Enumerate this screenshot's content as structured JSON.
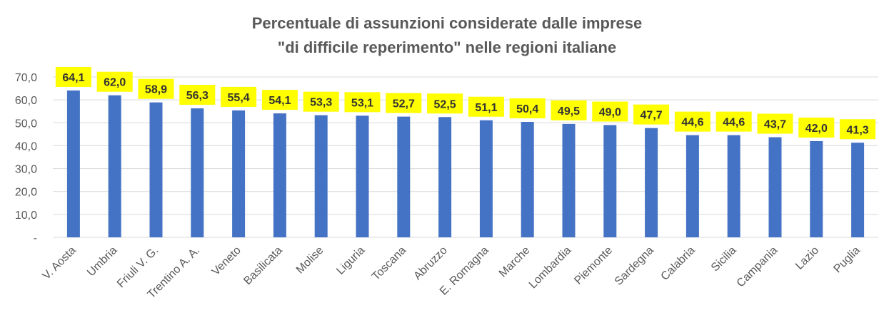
{
  "title_lines": [
    "Percentuale di assunzioni considerate dalle imprese",
    "\"di difficile reperimento\" nelle regioni italiane"
  ],
  "colors": {
    "bar": "#4472C4",
    "label_bg": "#FFFF00",
    "grid": "#D9D9D9",
    "text": "#595959"
  },
  "chart_data": {
    "type": "bar",
    "title": "Percentuale di assunzioni considerate dalle imprese \"di difficile reperimento\" nelle regioni italiane",
    "categories": [
      "V. Aosta",
      "Umbria",
      "Friuli V. G.",
      "Trentino A. A.",
      "Veneto",
      "Basilicata",
      "Molise",
      "Liguria",
      "Toscana",
      "Abruzzo",
      "E. Romagna",
      "Marche",
      "Lombardia",
      "Piemonte",
      "Sardegna",
      "Calabria",
      "Sicilia",
      "Campania",
      "Lazio",
      "Puglia"
    ],
    "values": [
      64.1,
      62.0,
      58.9,
      56.3,
      55.4,
      54.1,
      53.3,
      53.1,
      52.7,
      52.5,
      51.1,
      50.4,
      49.5,
      49.0,
      47.7,
      44.6,
      44.6,
      43.7,
      42.0,
      41.3
    ],
    "value_labels": [
      "64,1",
      "62,0",
      "58,9",
      "56,3",
      "55,4",
      "54,1",
      "53,3",
      "53,1",
      "52,7",
      "52,5",
      "51,1",
      "50,4",
      "49,5",
      "49,0",
      "47,7",
      "44,6",
      "44,6",
      "43,7",
      "42,0",
      "41,3"
    ],
    "ylim": [
      0,
      70
    ],
    "yticks": [
      0,
      10,
      20,
      30,
      40,
      50,
      60,
      70
    ],
    "ytick_labels": [
      "-",
      "10,0",
      "20,0",
      "30,0",
      "40,0",
      "50,0",
      "60,0",
      "70,0"
    ],
    "xlabel": "",
    "ylabel": "",
    "grid": true,
    "legend": "none"
  }
}
